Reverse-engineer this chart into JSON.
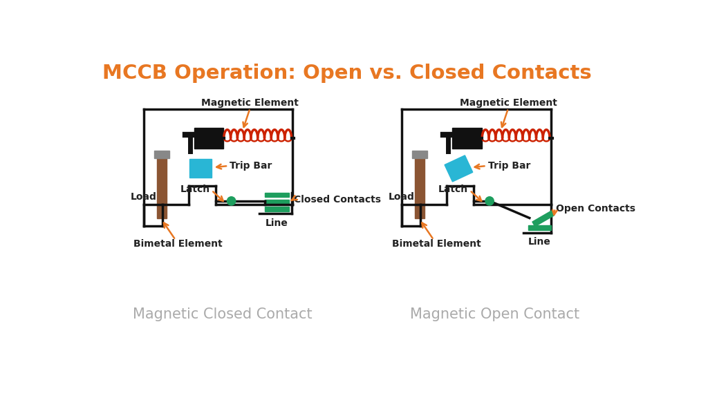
{
  "title": "MCCB Operation: Open vs. Closed Contacts",
  "title_color": "#E87722",
  "title_fontsize": 21,
  "title_fontweight": "bold",
  "bg_color": "#FFFFFF",
  "subtitle_left": "Magnetic Closed Contact",
  "subtitle_right": "Magnetic Open Contact",
  "subtitle_color": "#AAAAAA",
  "subtitle_fontsize": 15,
  "label_color": "#222222",
  "label_fontsize": 10,
  "arrow_color": "#E87722",
  "line_color": "#111111",
  "bimetal_color": "#8B5533",
  "tripbar_color": "#29B6D5",
  "coil_color": "#CC2200",
  "contact_color": "#1E9E5E",
  "latch_dot_color": "#1E9E5E",
  "hammer_color": "#888888",
  "iron_color": "#111111",
  "lw_main": 2.5
}
